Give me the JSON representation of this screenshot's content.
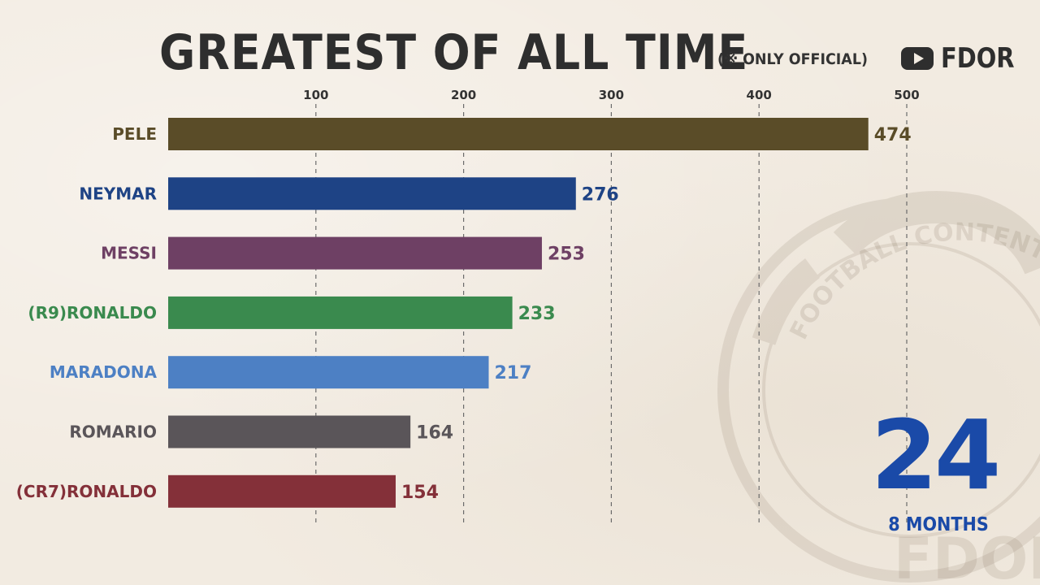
{
  "header": {
    "title": "GREATEST OF ALL TIME",
    "subtitle": "(※ ONLY OFFICIAL)",
    "channel_logo_text": "FDOR",
    "channel_logo_icon": "youtube-play-icon"
  },
  "counter": {
    "value": "24",
    "label": "8 MONTHS",
    "color": "#1a4aa8"
  },
  "watermark": {
    "ring_text": "FOOTBALL CONTENTS O",
    "brand": "FDOR"
  },
  "chart_data": {
    "type": "bar",
    "orientation": "horizontal",
    "title": "GREATEST OF ALL TIME",
    "subtitle": "(※ ONLY OFFICIAL)",
    "categories": [
      "PELE",
      "NEYMAR",
      "MESSI",
      "(R9)RONALDO",
      "MARADONA",
      "ROMARIO",
      "(CR7)RONALDO"
    ],
    "values": [
      474,
      276,
      253,
      233,
      217,
      164,
      154
    ],
    "colors": [
      "#5a4c28",
      "#1e4385",
      "#6e4064",
      "#3a8a4e",
      "#4d80c4",
      "#5a5559",
      "#843039"
    ],
    "xticks": [
      "100",
      "200",
      "300",
      "400",
      "500"
    ],
    "tick_values": [
      100,
      200,
      300,
      400,
      500
    ],
    "xlim": [
      0,
      500
    ],
    "grid": "vertical-dashed",
    "axis_position": "top"
  }
}
